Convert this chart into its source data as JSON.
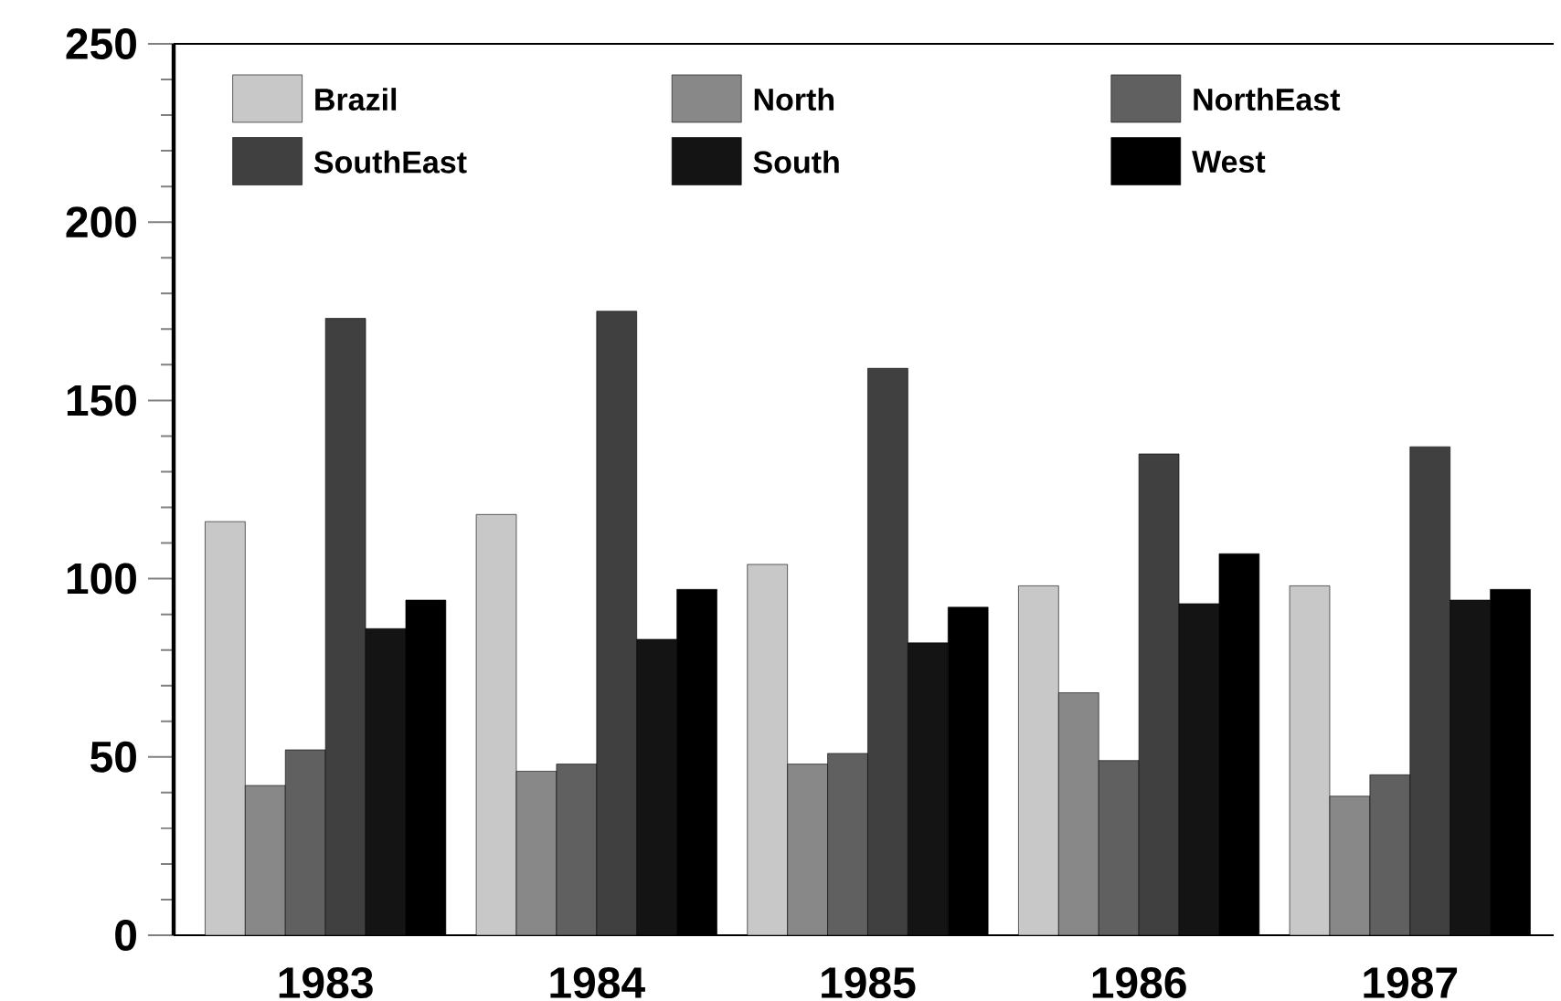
{
  "chart_data": {
    "type": "bar",
    "categories": [
      "1983",
      "1984",
      "1985",
      "1986",
      "1987"
    ],
    "series": [
      {
        "name": "Brazil",
        "color": "#c8c8c8",
        "values": [
          116,
          118,
          104,
          98,
          98
        ]
      },
      {
        "name": "North",
        "color": "#888888",
        "values": [
          42,
          46,
          48,
          68,
          39
        ]
      },
      {
        "name": "NorthEast",
        "color": "#606060",
        "values": [
          52,
          48,
          51,
          49,
          45
        ]
      },
      {
        "name": "SouthEast",
        "color": "#404040",
        "values": [
          173,
          175,
          159,
          135,
          137
        ]
      },
      {
        "name": "South",
        "color": "#141414",
        "values": [
          86,
          83,
          82,
          93,
          94
        ]
      },
      {
        "name": "West",
        "color": "#000000",
        "values": [
          94,
          97,
          92,
          107,
          97
        ]
      }
    ],
    "ylim": [
      0,
      250
    ],
    "yticks": [
      0,
      50,
      100,
      150,
      200,
      250
    ],
    "grid": false,
    "legend": "top"
  }
}
